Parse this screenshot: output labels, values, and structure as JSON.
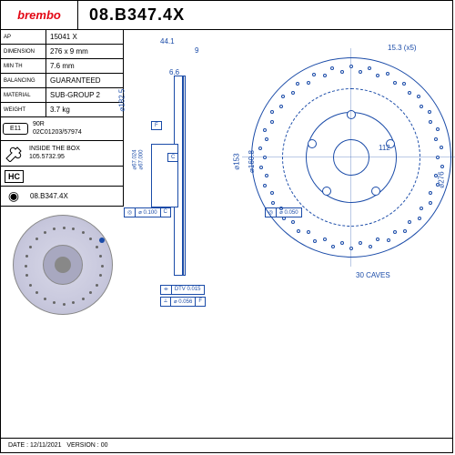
{
  "header": {
    "brand": "brembo",
    "part_number": "08.B347.4X"
  },
  "specs": {
    "ap_label": "AP",
    "ap_value": "15041 X",
    "dimension_label": "DIMENSION",
    "dimension_value": "276 x 9 mm",
    "minth_label": "MIN TH",
    "minth_value": "7.6 mm",
    "balancing_label": "BALANCING",
    "balancing_value": "GUARANTEED",
    "material_label": "MATERIAL",
    "material_value": "SUB-GROUP 2",
    "weight_label": "WEIGHT",
    "weight_value": "3.7 kg"
  },
  "cert": {
    "mark": "E11",
    "code1": "90R",
    "code2": "02C01203/57974"
  },
  "box": {
    "label": "INSIDE THE BOX",
    "code": "105.5732.95"
  },
  "hc": "HC",
  "bottom_code": "08.B347.4X",
  "dimensions": {
    "width1": "44.1",
    "width2": "9",
    "width3": "6.6",
    "bolt_pattern": "15.3 (x5)",
    "dia1": "⌀182.5",
    "dia2": "⌀67.024",
    "dia2b": "⌀67.000",
    "dia3": "⌀153",
    "dia4": "⌀160.8",
    "bolt_circle": "112",
    "outer_dia": "⌀276",
    "caves": "30 CAVES",
    "f_mark": "F",
    "c_mark": "C"
  },
  "gdt": {
    "conc1": "⌀ 0.100",
    "conc1_ref": "C",
    "conc2": "⌀ 0.050",
    "runout": "DTV 0.015",
    "flat": "⌀ 0.056",
    "flat_ref": "F"
  },
  "footer": {
    "date_label": "DATE :",
    "date": "12/11/2021",
    "version_label": "VERSION :",
    "version": "00"
  },
  "colors": {
    "drawing": "#1a4ba8",
    "brand": "#e30613",
    "disc_fill": "#c8c8dd"
  }
}
